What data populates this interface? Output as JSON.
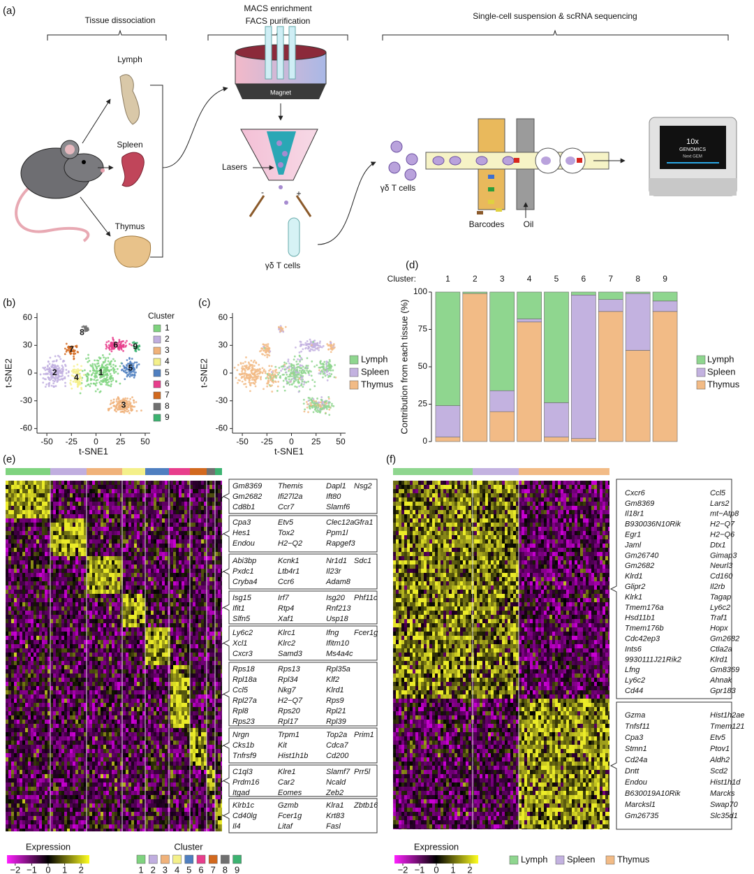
{
  "panel_a": {
    "label": "(a)",
    "steps": [
      "Tissue dissociation",
      "MACS enrichment",
      "FACS purification",
      "Single-cell suspension & scRNA sequencing"
    ],
    "tissues": [
      "Lymph",
      "Spleen",
      "Thymus"
    ],
    "magnet": "Magnet",
    "lasers": "Lasers",
    "minus": "-",
    "plus": "+",
    "cells": "γδ T cells",
    "barcodes": "Barcodes",
    "oil": "Oil",
    "device": [
      "10x",
      "GENOMICS",
      "Next GEM"
    ]
  },
  "chart_data": [
    {
      "type": "scatter",
      "panel_label": "(b)",
      "xlabel": "t-SNE1",
      "ylabel": "t-SNE2",
      "xlim": [
        -60,
        55
      ],
      "ylim": [
        -65,
        65
      ],
      "xticks": [
        -50,
        -25,
        0,
        25,
        50
      ],
      "yticks": [
        -60,
        -30,
        0,
        30,
        60
      ],
      "legend_title": "Cluster",
      "categories": [
        "1",
        "2",
        "3",
        "4",
        "5",
        "6",
        "7",
        "8",
        "9"
      ],
      "colors": [
        "#7fd37f",
        "#c0aedf",
        "#f0b27a",
        "#f4f08a",
        "#4f7fc0",
        "#e83e8c",
        "#d2691e",
        "#707070",
        "#3cb371"
      ]
    },
    {
      "type": "scatter",
      "panel_label": "(c)",
      "xlabel": "t-SNE1",
      "ylabel": "t-SNE2",
      "xlim": [
        -60,
        55
      ],
      "ylim": [
        -65,
        65
      ],
      "xticks": [
        -50,
        -25,
        0,
        25,
        50
      ],
      "yticks": [
        -60,
        -30,
        0,
        30,
        60
      ],
      "groups": [
        {
          "name": "Lymph",
          "color": "#8fd68f"
        },
        {
          "name": "Spleen",
          "color": "#c3b2e0"
        },
        {
          "name": "Thymus",
          "color": "#f2bb86"
        }
      ]
    },
    {
      "type": "bar",
      "stacked": true,
      "panel_label": "(d)",
      "category_label": "Cluster:",
      "categories": [
        "1",
        "2",
        "3",
        "4",
        "5",
        "6",
        "7",
        "8",
        "9"
      ],
      "ylabel": "Contribution from each tissue (%)",
      "ylim": [
        0,
        100
      ],
      "yticks": [
        0,
        25,
        50,
        75,
        100
      ],
      "series": [
        {
          "name": "Lymph",
          "color": "#8fd68f",
          "values": [
            76,
            1,
            66,
            18,
            74,
            2,
            5,
            1,
            6
          ]
        },
        {
          "name": "Spleen",
          "color": "#c3b2e0",
          "values": [
            21,
            0,
            14,
            2,
            23,
            96,
            8,
            38,
            7
          ]
        },
        {
          "name": "Thymus",
          "color": "#f2bb86",
          "values": [
            3,
            99,
            20,
            80,
            3,
            2,
            87,
            61,
            87
          ]
        }
      ]
    }
  ],
  "panel_e": {
    "label": "(e)",
    "gene_groups": [
      [
        [
          "Gm8369",
          "Gm2682",
          "Cd8b1"
        ],
        [
          "Themis",
          "Ifi27l2a",
          "Ccr7"
        ],
        [
          "Dapl1",
          "Ift80",
          "Slamf6"
        ],
        [
          "Nsg2"
        ]
      ],
      [
        [
          "Cpa3",
          "Hes1",
          "Endou"
        ],
        [
          "Etv5",
          "Tox2",
          "H2−Q2"
        ],
        [
          "Clec12a",
          "Ppm1l",
          "Rapgef3"
        ],
        [
          "Gfra1"
        ]
      ],
      [
        [
          "Abi3bp",
          "Pxdc1",
          "Cryba4"
        ],
        [
          "Kcnk1",
          "Ltb4r1",
          "Ccr6"
        ],
        [
          "Nr1d1",
          "Il23r",
          "Adam8"
        ],
        [
          "Sdc1"
        ]
      ],
      [
        [
          "Isg15",
          "Ifit1",
          "Slfn5"
        ],
        [
          "Irf7",
          "Rtp4",
          "Xaf1"
        ],
        [
          "Isg20",
          "Rnf213",
          "Usp18"
        ],
        [
          "Phf11c"
        ]
      ],
      [
        [
          "Ly6c2",
          "Xcl1",
          "Cxcr3"
        ],
        [
          "Klrc1",
          "Klrc2",
          "Samd3"
        ],
        [
          "Ifng",
          "Ifitm10",
          "Ms4a4c"
        ],
        [
          "Fcer1g"
        ]
      ],
      [
        [
          "Rps18",
          "Rpl18a",
          "Ccl5",
          "Rpl27a",
          "Rpl8",
          "Rps23"
        ],
        [
          "Rps13",
          "Rpl34",
          "Nkg7",
          "H2−Q7",
          "Rps20",
          "Rpl17"
        ],
        [
          "Rpl35a",
          "Klf2",
          "Klrd1",
          "Rps9",
          "Rpl21",
          "Rpl39"
        ]
      ],
      [
        [
          "Nrgn",
          "Cks1b",
          "Tnfrsf9"
        ],
        [
          "Trpm1",
          "Kit",
          "Hist1h1b"
        ],
        [
          "Top2a",
          "Cdca7",
          "Cd200"
        ],
        [
          "Prim1"
        ]
      ],
      [
        [
          "C1ql3",
          "Prdm16",
          "Itgad"
        ],
        [
          "Klre1",
          "Car2",
          "Eomes"
        ],
        [
          "Slamf7",
          "Ncald",
          "Zeb2"
        ],
        [
          "Prr5l"
        ]
      ],
      [
        [
          "Klrb1c",
          "Cd40lg",
          "Il4"
        ],
        [
          "Gzmb",
          "Fcer1g",
          "Litaf"
        ],
        [
          "Klra1",
          "Krt83",
          "Fasl"
        ],
        [
          "Zbtb16"
        ]
      ]
    ],
    "expression_legend": {
      "title": "Expression",
      "ticks": [
        {
          "value": -2,
          "label": "−2"
        },
        {
          "value": -1,
          "label": "−1"
        },
        0,
        1,
        2
      ]
    },
    "cluster_legend": {
      "title": "Cluster",
      "labels": [
        "1",
        "2",
        "3",
        "4",
        "5",
        "6",
        "7",
        "8",
        "9"
      ]
    }
  },
  "panel_f": {
    "label": "(f)",
    "gene_groups": [
      [
        [
          "Cxcr6",
          "Gm8369",
          "Il18r1",
          "B930036N10Rik",
          "Egr1",
          "Jaml",
          "Gm26740",
          "Gm2682",
          "Klrd1",
          "Glipr2",
          "Klrk1",
          "Tmem176a",
          "Hsd11b1",
          "Tmem176b",
          "Cdc42ep3",
          "Ints6",
          "9930111J21Rik2",
          "Lfng",
          "Ly6c2",
          "Cd44"
        ],
        [
          "Ccl5",
          "Lars2",
          "mt−Atp8",
          "H2−Q7",
          "H2−Q6",
          "Dtx1",
          "Gimap3",
          "Neurl3",
          "Cd160",
          "Il2rb",
          "Tagap",
          "Ly6c2",
          "Traf1",
          "Hopx",
          "Gm2682",
          "Ctla2a",
          "Klrd1",
          "Gm8369",
          "Ahnak",
          "Gpr183"
        ]
      ],
      [
        [
          "Gzma",
          "Tnfsf11",
          "Cpa3",
          "Stmn1",
          "Cd24a",
          "Dntt",
          "Endou",
          "B630019A10Rik",
          "Marcksl1",
          "Gm26735"
        ],
        [
          "Hist1h2ae",
          "Tmem121",
          "Etv5",
          "Ptov1",
          "Aldh2",
          "Scd2",
          "Hist1h1d",
          "Marcks",
          "Swap70",
          "Slc35d1"
        ]
      ]
    ],
    "expression_legend": {
      "title": "Expression",
      "ticks": [
        {
          "value": -2,
          "label": "−2"
        },
        {
          "value": -1,
          "label": "−1"
        },
        0,
        1,
        2
      ]
    },
    "tissue_legend": [
      "Lymph",
      "Spleen",
      "Thymus"
    ]
  }
}
